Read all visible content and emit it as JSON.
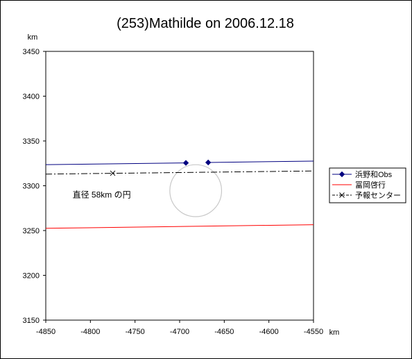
{
  "chart_data": {
    "type": "line",
    "title": "(253)Mathilde on 2006.12.18",
    "xlabel": "km",
    "ylabel": "km",
    "xlim": [
      -4850,
      -4550
    ],
    "ylim": [
      3150,
      3450
    ],
    "x_ticks": [
      -4850,
      -4800,
      -4750,
      -4700,
      -4650,
      -4600,
      -4550
    ],
    "y_ticks": [
      3150,
      3200,
      3250,
      3300,
      3350,
      3400,
      3450
    ],
    "grid": false,
    "legend_position": "right",
    "series": [
      {
        "name": "浜野和Obs",
        "color": "#000080",
        "style": "solid",
        "marker": "diamond",
        "segments": [
          {
            "points": [
              [
                -4850,
                3323.5
              ],
              [
                -4693,
                3325.5
              ]
            ],
            "markers": [
              [
                -4693,
                3325.5
              ]
            ]
          },
          {
            "points": [
              [
                -4668,
                3326.0
              ],
              [
                -4550,
                3327.5
              ]
            ],
            "markers": [
              [
                -4668,
                3326.0
              ]
            ]
          }
        ]
      },
      {
        "name": "冨岡啓行",
        "color": "#ff0000",
        "style": "solid",
        "marker": "none",
        "segments": [
          {
            "points": [
              [
                -4850,
                3252.5
              ],
              [
                -4550,
                3256.5
              ]
            ],
            "markers": []
          }
        ]
      },
      {
        "name": "予報センター",
        "color": "#000000",
        "style": "dashdot",
        "marker": "x",
        "segments": [
          {
            "points": [
              [
                -4850,
                3313.0
              ],
              [
                -4550,
                3316.5
              ]
            ],
            "markers": [
              [
                -4775,
                3314.0
              ]
            ]
          }
        ]
      }
    ],
    "circle": {
      "cx": -4682,
      "cy": 3294.5,
      "diameter": 58,
      "color": "#c8c8c8"
    },
    "annotations": [
      {
        "text": "直径 58km の円",
        "x": -4820,
        "y": 3287
      }
    ]
  }
}
